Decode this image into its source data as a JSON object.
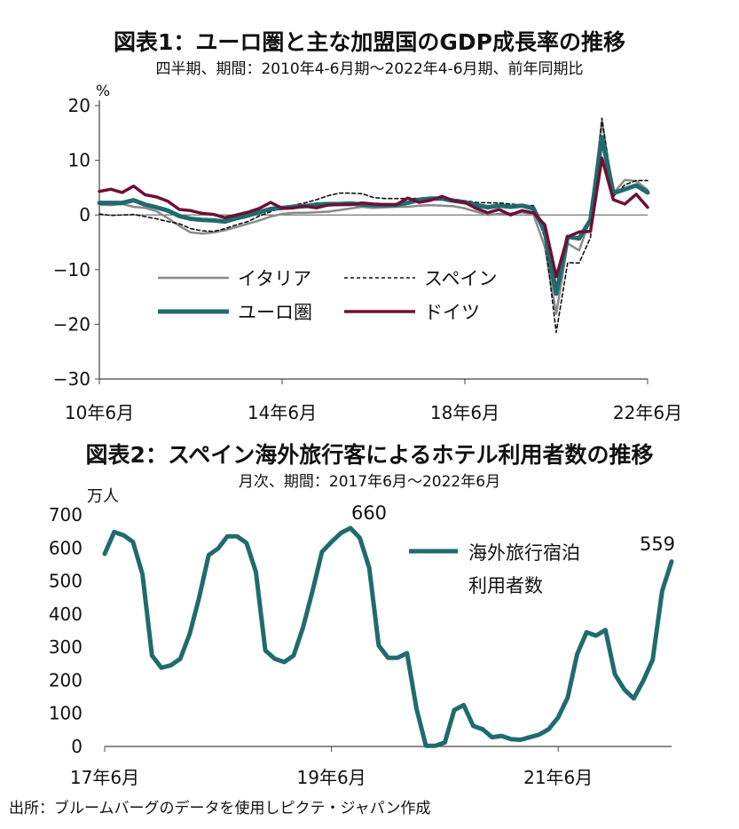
{
  "source": "出所：ブルームバーグのデータを使用しピクテ・ジャパン作成",
  "chart_data": [
    {
      "type": "line",
      "title": "図表1：ユーロ圏と主な加盟国のGDP成長率の推移",
      "subtitle": "四半期、期間：2010年4-6月期～2022年4-6月期、前年同期比",
      "ylabel": "%",
      "ylim": [
        -30,
        20
      ],
      "yticks": [
        20,
        10,
        0,
        -10,
        -20,
        -30
      ],
      "ytick_labels": [
        "20",
        "10",
        "0",
        "−10",
        "−20",
        "−30"
      ],
      "xtick_labels": [
        "10年6月",
        "14年6月",
        "18年6月",
        "22年6月"
      ],
      "legend": [
        "イタリア",
        "スペイン",
        "ユーロ圏",
        "ドイツ"
      ],
      "x": [
        "2010Q2",
        "2010Q3",
        "2010Q4",
        "2011Q1",
        "2011Q2",
        "2011Q3",
        "2011Q4",
        "2012Q1",
        "2012Q2",
        "2012Q3",
        "2012Q4",
        "2013Q1",
        "2013Q2",
        "2013Q3",
        "2013Q4",
        "2014Q1",
        "2014Q2",
        "2014Q3",
        "2014Q4",
        "2015Q1",
        "2015Q2",
        "2015Q3",
        "2015Q4",
        "2016Q1",
        "2016Q2",
        "2016Q3",
        "2016Q4",
        "2017Q1",
        "2017Q2",
        "2017Q3",
        "2017Q4",
        "2018Q1",
        "2018Q2",
        "2018Q3",
        "2018Q4",
        "2019Q1",
        "2019Q2",
        "2019Q3",
        "2019Q4",
        "2020Q1",
        "2020Q2",
        "2020Q3",
        "2020Q4",
        "2021Q1",
        "2021Q2",
        "2021Q3",
        "2021Q4",
        "2022Q1",
        "2022Q2"
      ],
      "series": [
        {
          "name": "イタリア",
          "color": "#8a8a8a",
          "width": 2.5,
          "dash": "",
          "values": [
            1.9,
            1.8,
            2.0,
            1.5,
            1.3,
            0.7,
            -0.6,
            -2.0,
            -3.2,
            -3.4,
            -3.2,
            -2.8,
            -2.2,
            -1.6,
            -1.0,
            -0.3,
            0.2,
            0.4,
            0.4,
            0.5,
            0.6,
            0.9,
            1.2,
            1.5,
            1.3,
            1.4,
            1.5,
            1.5,
            1.7,
            1.8,
            1.7,
            1.6,
            1.2,
            0.6,
            0.0,
            0.2,
            0.3,
            0.5,
            0.1,
            -5.8,
            -18.1,
            -5.2,
            -6.5,
            -0.6,
            17.1,
            4.0,
            6.4,
            6.2,
            4.6
          ]
        },
        {
          "name": "スペイン",
          "color": "#111111",
          "width": 1.6,
          "dash": "4,3",
          "values": [
            0.2,
            -0.1,
            0.0,
            0.1,
            -0.3,
            -0.7,
            -1.2,
            -1.6,
            -2.5,
            -2.9,
            -3.0,
            -2.5,
            -1.8,
            -1.2,
            -0.2,
            0.6,
            1.3,
            1.8,
            2.2,
            2.8,
            3.5,
            4.0,
            4.0,
            3.9,
            3.2,
            3.0,
            3.0,
            3.0,
            3.0,
            3.1,
            3.0,
            2.9,
            2.6,
            2.3,
            2.2,
            2.2,
            2.0,
            1.8,
            1.7,
            -4.2,
            -21.5,
            -8.7,
            -8.8,
            -4.1,
            17.7,
            3.4,
            5.5,
            6.3,
            6.3
          ]
        },
        {
          "name": "ユーロ圏",
          "color": "#1f6b6e",
          "width": 5,
          "dash": "",
          "values": [
            2.2,
            2.2,
            2.2,
            2.7,
            1.9,
            1.4,
            0.8,
            -0.2,
            -0.7,
            -0.9,
            -1.0,
            -1.2,
            -0.6,
            -0.1,
            0.5,
            1.1,
            1.3,
            1.5,
            1.6,
            1.9,
            2.0,
            2.0,
            2.1,
            1.9,
            1.8,
            1.8,
            1.8,
            2.2,
            2.8,
            3.0,
            3.0,
            2.6,
            2.3,
            1.8,
            1.4,
            1.7,
            1.5,
            1.7,
            1.2,
            -3.0,
            -14.4,
            -4.0,
            -4.3,
            -0.9,
            14.2,
            4.0,
            4.7,
            5.4,
            4.1
          ]
        },
        {
          "name": "ドイツ",
          "color": "#6e1035",
          "width": 3.5,
          "dash": "",
          "values": [
            4.3,
            4.7,
            4.1,
            5.3,
            3.7,
            3.3,
            2.5,
            1.0,
            0.8,
            0.3,
            0.1,
            -0.5,
            0.0,
            0.5,
            1.2,
            2.3,
            1.2,
            1.3,
            1.6,
            1.3,
            1.8,
            1.9,
            1.9,
            2.2,
            2.0,
            1.9,
            1.9,
            3.1,
            2.3,
            2.7,
            3.4,
            2.6,
            2.3,
            1.2,
            0.4,
            1.0,
            0.0,
            0.8,
            0.4,
            -1.8,
            -11.3,
            -4.0,
            -3.1,
            -3.0,
            10.4,
            2.8,
            2.0,
            3.8,
            1.4
          ]
        }
      ]
    },
    {
      "type": "line",
      "title": "図表2：スペイン海外旅行客によるホテル利用者数の推移",
      "subtitle": "月次、期間：2017年6月～2022年6月",
      "ylabel": "万人",
      "ylim": [
        0,
        700
      ],
      "yticks": [
        700,
        600,
        500,
        400,
        300,
        200,
        100,
        0
      ],
      "ytick_labels": [
        "700",
        "600",
        "500",
        "400",
        "300",
        "200",
        "100",
        "0"
      ],
      "xtick_labels": [
        "17年6月",
        "19年6月",
        "21年6月"
      ],
      "legend": [
        "海外旅行宿泊",
        "利用者数"
      ],
      "annotations": [
        "660",
        "559"
      ],
      "x": [
        "2017-06",
        "2017-07",
        "2017-08",
        "2017-09",
        "2017-10",
        "2017-11",
        "2017-12",
        "2018-01",
        "2018-02",
        "2018-03",
        "2018-04",
        "2018-05",
        "2018-06",
        "2018-07",
        "2018-08",
        "2018-09",
        "2018-10",
        "2018-11",
        "2018-12",
        "2019-01",
        "2019-02",
        "2019-03",
        "2019-04",
        "2019-05",
        "2019-06",
        "2019-07",
        "2019-08",
        "2019-09",
        "2019-10",
        "2019-11",
        "2019-12",
        "2020-01",
        "2020-02",
        "2020-03",
        "2020-04",
        "2020-05",
        "2020-06",
        "2020-07",
        "2020-08",
        "2020-09",
        "2020-10",
        "2020-11",
        "2020-12",
        "2021-01",
        "2021-02",
        "2021-03",
        "2021-04",
        "2021-05",
        "2021-06",
        "2021-07",
        "2021-08",
        "2021-09",
        "2021-10",
        "2021-11",
        "2021-12",
        "2022-01",
        "2022-02",
        "2022-03",
        "2022-04",
        "2022-05",
        "2022-06"
      ],
      "series": [
        {
          "name": "海外旅行宿泊利用者数",
          "color": "#1f6b6e",
          "width": 5,
          "values": [
            582,
            648,
            638,
            618,
            520,
            275,
            238,
            245,
            265,
            340,
            450,
            578,
            598,
            635,
            635,
            615,
            528,
            290,
            265,
            255,
            275,
            360,
            470,
            588,
            618,
            645,
            660,
            630,
            540,
            305,
            268,
            268,
            282,
            115,
            2,
            2,
            12,
            110,
            125,
            62,
            52,
            28,
            32,
            22,
            20,
            28,
            36,
            52,
            88,
            148,
            278,
            345,
            335,
            352,
            218,
            172,
            145,
            198,
            262,
            470,
            559
          ]
        }
      ]
    }
  ]
}
